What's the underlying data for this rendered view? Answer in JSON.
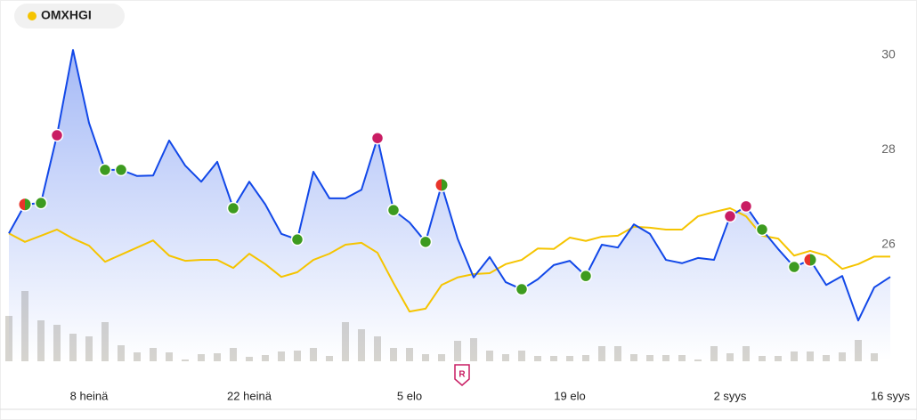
{
  "chart_data": {
    "type": "line",
    "categories": [
      null,
      null,
      null,
      null,
      null,
      "8 heinä",
      null,
      null,
      null,
      null,
      null,
      null,
      null,
      null,
      null,
      "22 heinä",
      null,
      null,
      null,
      null,
      null,
      null,
      null,
      null,
      null,
      "5 elo",
      null,
      null,
      null,
      null,
      null,
      null,
      null,
      null,
      null,
      "19 elo",
      null,
      null,
      null,
      null,
      null,
      null,
      null,
      null,
      null,
      "2 syys",
      null,
      null,
      null,
      null,
      null,
      null,
      null,
      null,
      null,
      "16 syys"
    ],
    "series": [
      {
        "color": "#1248e8",
        "values": [
          26.24,
          26.85,
          26.88,
          28.31,
          30.11,
          28.57,
          27.58,
          27.58,
          27.45,
          27.46,
          28.2,
          27.67,
          27.33,
          27.75,
          26.77,
          27.33,
          26.85,
          26.23,
          26.11,
          27.54,
          26.98,
          26.98,
          27.16,
          28.25,
          26.73,
          26.47,
          26.06,
          27.26,
          26.13,
          25.31,
          25.74,
          25.21,
          25.06,
          25.27,
          25.57,
          25.66,
          25.34,
          26.0,
          25.94,
          26.43,
          26.23,
          25.68,
          25.61,
          25.72,
          25.68,
          26.6,
          26.81,
          26.32,
          25.91,
          25.53,
          25.68,
          25.15,
          25.34,
          24.4,
          25.1,
          25.32
        ],
        "marker_colors": [
          null,
          [
            "#e8342a",
            "#3d9b1f"
          ],
          "#3d9b1f",
          "#c91d63",
          null,
          null,
          "#3d9b1f",
          "#3d9b1f",
          null,
          null,
          null,
          null,
          null,
          null,
          "#3d9b1f",
          null,
          null,
          null,
          "#3d9b1f",
          null,
          null,
          null,
          null,
          "#c91d63",
          "#3d9b1f",
          null,
          "#3d9b1f",
          [
            "#e8342a",
            "#3d9b1f"
          ],
          null,
          null,
          null,
          null,
          "#3d9b1f",
          null,
          null,
          null,
          "#3d9b1f",
          null,
          null,
          null,
          null,
          null,
          null,
          null,
          null,
          "#c91d63",
          "#c91d63",
          "#3d9b1f",
          null,
          "#3d9b1f",
          [
            "#e8342a",
            "#3d9b1f"
          ],
          null,
          null,
          null,
          null,
          null
        ]
      },
      {
        "name": "OMXHGI",
        "color": "#f5c400",
        "values": [
          26.24,
          26.06,
          26.19,
          26.32,
          26.13,
          25.98,
          25.64,
          25.79,
          25.94,
          26.09,
          25.77,
          25.66,
          25.68,
          25.68,
          25.51,
          25.81,
          25.59,
          25.32,
          25.42,
          25.68,
          25.81,
          26.0,
          26.04,
          25.83,
          25.19,
          24.59,
          24.65,
          25.15,
          25.31,
          25.38,
          25.4,
          25.59,
          25.68,
          25.92,
          25.91,
          26.15,
          26.08,
          26.17,
          26.19,
          26.38,
          26.36,
          26.32,
          26.32,
          26.6,
          26.69,
          26.77,
          26.6,
          26.19,
          26.13,
          25.77,
          25.87,
          25.77,
          25.49,
          25.59,
          25.75,
          25.75
        ]
      }
    ],
    "volume": {
      "color": "#d6d4cf",
      "ylim": [
        0,
        100
      ],
      "values": [
        51,
        79,
        46,
        41,
        31,
        28,
        44,
        18,
        10,
        15,
        10,
        2,
        8,
        9,
        15,
        5,
        7,
        11,
        12,
        15,
        6,
        44,
        36,
        28,
        15,
        15,
        8,
        8,
        23,
        26,
        12,
        8,
        12,
        6,
        6,
        6,
        7,
        17,
        17,
        8,
        7,
        7,
        7,
        2,
        17,
        9,
        17,
        6,
        6,
        11,
        11,
        7,
        10,
        24,
        9,
        null
      ]
    },
    "ylim": [
      24.0,
      30.5
    ],
    "yticks": [
      26,
      28,
      30
    ],
    "grid": false
  }
}
